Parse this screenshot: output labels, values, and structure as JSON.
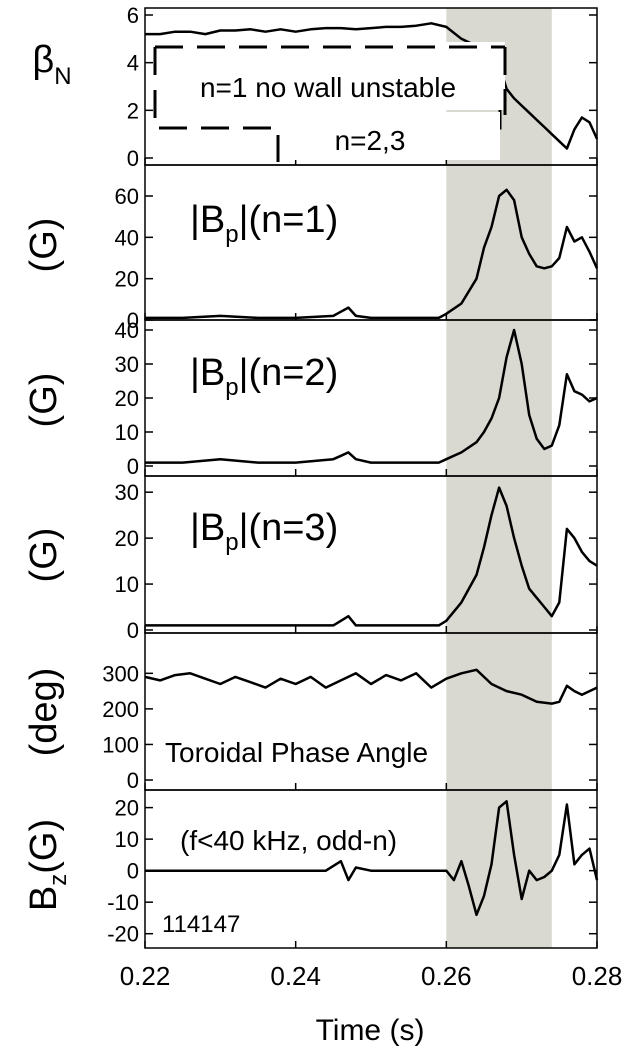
{
  "chart_data": {
    "type": "line",
    "x_axis": {
      "xlabel": "Time (s)",
      "xlim": [
        0.22,
        0.28
      ],
      "ticks": [
        0.22,
        0.24,
        0.26,
        0.28
      ],
      "tick_labels": [
        "0.22",
        "0.24",
        "0.26",
        "0.28"
      ]
    },
    "shaded_region": {
      "x": [
        0.26,
        0.274
      ],
      "color": "#d9d9d2"
    },
    "shot_label": "114147",
    "panels": [
      {
        "id": "beta",
        "ylabel_main": "β",
        "ylabel_sub": "N",
        "ylim": [
          0,
          6
        ],
        "yticks": [
          0,
          2,
          4,
          6
        ],
        "ytick_labels": [
          "0",
          "2",
          "4",
          "6"
        ],
        "series": [
          {
            "x": [
              0.22,
              0.222,
              0.224,
              0.226,
              0.228,
              0.23,
              0.232,
              0.234,
              0.236,
              0.238,
              0.24,
              0.242,
              0.244,
              0.246,
              0.248,
              0.25,
              0.252,
              0.254,
              0.256,
              0.258,
              0.26,
              0.262,
              0.264,
              0.266,
              0.267,
              0.268,
              0.269,
              0.27,
              0.271,
              0.272,
              0.273,
              0.274,
              0.275,
              0.276,
              0.277,
              0.278,
              0.279,
              0.28
            ],
            "y": [
              5.2,
              5.2,
              5.3,
              5.3,
              5.2,
              5.35,
              5.35,
              5.4,
              5.3,
              5.4,
              5.3,
              5.4,
              5.45,
              5.45,
              5.4,
              5.45,
              5.5,
              5.5,
              5.55,
              5.65,
              5.5,
              5.0,
              4.7,
              4.3,
              3.9,
              2.9,
              2.5,
              2.2,
              1.9,
              1.6,
              1.3,
              1.0,
              0.7,
              0.4,
              1.2,
              1.7,
              1.5,
              0.8
            ]
          }
        ],
        "annotations": [
          {
            "text": "n=1 no wall unstable",
            "level": 4.5
          },
          {
            "text": "n=2,3",
            "level": 1.6
          }
        ]
      },
      {
        "id": "bp1",
        "ylabel": "(G)",
        "label_main": "|B",
        "label_sub": "p",
        "label_tail": "|(n=1)",
        "ylim": [
          0,
          75
        ],
        "yticks": [
          0,
          20,
          40,
          60
        ],
        "ytick_labels": [
          "0",
          "20",
          "40",
          "60"
        ],
        "series": [
          {
            "x": [
              0.22,
              0.225,
              0.23,
              0.235,
              0.24,
              0.245,
              0.246,
              0.247,
              0.248,
              0.25,
              0.255,
              0.259,
              0.26,
              0.262,
              0.264,
              0.265,
              0.266,
              0.267,
              0.268,
              0.269,
              0.27,
              0.271,
              0.272,
              0.273,
              0.274,
              0.275,
              0.276,
              0.277,
              0.278,
              0.279,
              0.28
            ],
            "y": [
              1,
              1,
              2,
              1,
              1,
              2,
              4,
              6,
              2,
              1,
              1,
              1,
              3,
              8,
              20,
              35,
              45,
              60,
              63,
              58,
              40,
              32,
              26,
              25,
              26,
              30,
              45,
              38,
              40,
              33,
              25
            ]
          }
        ]
      },
      {
        "id": "bp2",
        "ylabel": "(G)",
        "label_main": "|B",
        "label_sub": "p",
        "label_tail": "|(n=2)",
        "ylim": [
          0,
          40
        ],
        "yticks": [
          0,
          10,
          20,
          30,
          40
        ],
        "ytick_labels": [
          "0",
          "10",
          "20",
          "30",
          "40"
        ],
        "series": [
          {
            "x": [
              0.22,
              0.225,
              0.23,
              0.235,
              0.24,
              0.245,
              0.246,
              0.247,
              0.248,
              0.25,
              0.255,
              0.259,
              0.26,
              0.262,
              0.264,
              0.265,
              0.266,
              0.267,
              0.268,
              0.269,
              0.27,
              0.271,
              0.272,
              0.273,
              0.274,
              0.275,
              0.276,
              0.277,
              0.278,
              0.279,
              0.28
            ],
            "y": [
              1,
              1,
              2,
              1,
              1,
              2,
              3,
              4,
              2,
              1,
              1,
              1,
              2,
              4,
              7,
              10,
              14,
              20,
              32,
              40,
              30,
              15,
              8,
              5,
              6,
              12,
              27,
              22,
              21,
              19,
              20
            ]
          }
        ]
      },
      {
        "id": "bp3",
        "ylabel": "(G)",
        "label_main": "|B",
        "label_sub": "p",
        "label_tail": "|(n=3)",
        "ylim": [
          0,
          32
        ],
        "yticks": [
          0,
          10,
          20,
          30
        ],
        "ytick_labels": [
          "0",
          "10",
          "20",
          "30"
        ],
        "series": [
          {
            "x": [
              0.22,
              0.225,
              0.23,
              0.235,
              0.24,
              0.245,
              0.246,
              0.247,
              0.248,
              0.25,
              0.255,
              0.259,
              0.26,
              0.262,
              0.264,
              0.265,
              0.266,
              0.267,
              0.268,
              0.269,
              0.27,
              0.271,
              0.272,
              0.273,
              0.274,
              0.275,
              0.276,
              0.277,
              0.278,
              0.279,
              0.28
            ],
            "y": [
              1,
              1,
              1,
              1,
              1,
              1,
              2,
              3,
              1,
              1,
              1,
              1,
              2,
              6,
              12,
              18,
              25,
              31,
              27,
              20,
              14,
              9,
              7,
              5,
              3,
              6,
              22,
              20,
              17,
              15,
              14
            ]
          }
        ]
      },
      {
        "id": "phase",
        "ylabel": "(deg)",
        "annotation": "Toroidal Phase Angle",
        "ylim": [
          0,
          360
        ],
        "yticks": [
          0,
          100,
          200,
          300
        ],
        "ytick_labels": [
          "0",
          "100",
          "200",
          "300"
        ],
        "series": [
          {
            "x": [
              0.22,
              0.222,
              0.224,
              0.226,
              0.228,
              0.23,
              0.232,
              0.234,
              0.236,
              0.238,
              0.24,
              0.242,
              0.244,
              0.246,
              0.248,
              0.25,
              0.252,
              0.254,
              0.256,
              0.258,
              0.26,
              0.262,
              0.264,
              0.265,
              0.266,
              0.268,
              0.27,
              0.272,
              0.274,
              0.275,
              0.276,
              0.277,
              0.278,
              0.28
            ],
            "y": [
              290,
              280,
              295,
              300,
              285,
              270,
              290,
              275,
              260,
              285,
              270,
              290,
              260,
              280,
              300,
              270,
              295,
              280,
              300,
              260,
              285,
              300,
              310,
              290,
              270,
              250,
              240,
              220,
              215,
              220,
              265,
              250,
              240,
              260
            ]
          }
        ]
      },
      {
        "id": "bz",
        "ylabel_main": "B",
        "ylabel_sub": "z",
        "ylabel_tail": "(G)",
        "annotation": "(f<40 kHz, odd-n)",
        "ylim": [
          -22,
          24
        ],
        "yticks": [
          -20,
          -10,
          0,
          10,
          20
        ],
        "ytick_labels": [
          "-20",
          "-10",
          "0",
          "10",
          "20"
        ],
        "series": [
          {
            "x": [
              0.22,
              0.225,
              0.23,
              0.235,
              0.24,
              0.244,
              0.246,
              0.247,
              0.248,
              0.25,
              0.255,
              0.26,
              0.261,
              0.262,
              0.263,
              0.264,
              0.265,
              0.266,
              0.267,
              0.268,
              0.269,
              0.27,
              0.271,
              0.272,
              0.273,
              0.274,
              0.275,
              0.276,
              0.277,
              0.278,
              0.279,
              0.28
            ],
            "y": [
              0,
              0,
              0,
              0,
              0,
              0,
              3,
              -3,
              1,
              0,
              0,
              0,
              -3,
              3,
              -5,
              -14,
              -8,
              2,
              20,
              22,
              5,
              -9,
              0,
              -3,
              -2,
              0,
              5,
              21,
              2,
              5,
              7,
              -3
            ]
          }
        ]
      }
    ]
  }
}
